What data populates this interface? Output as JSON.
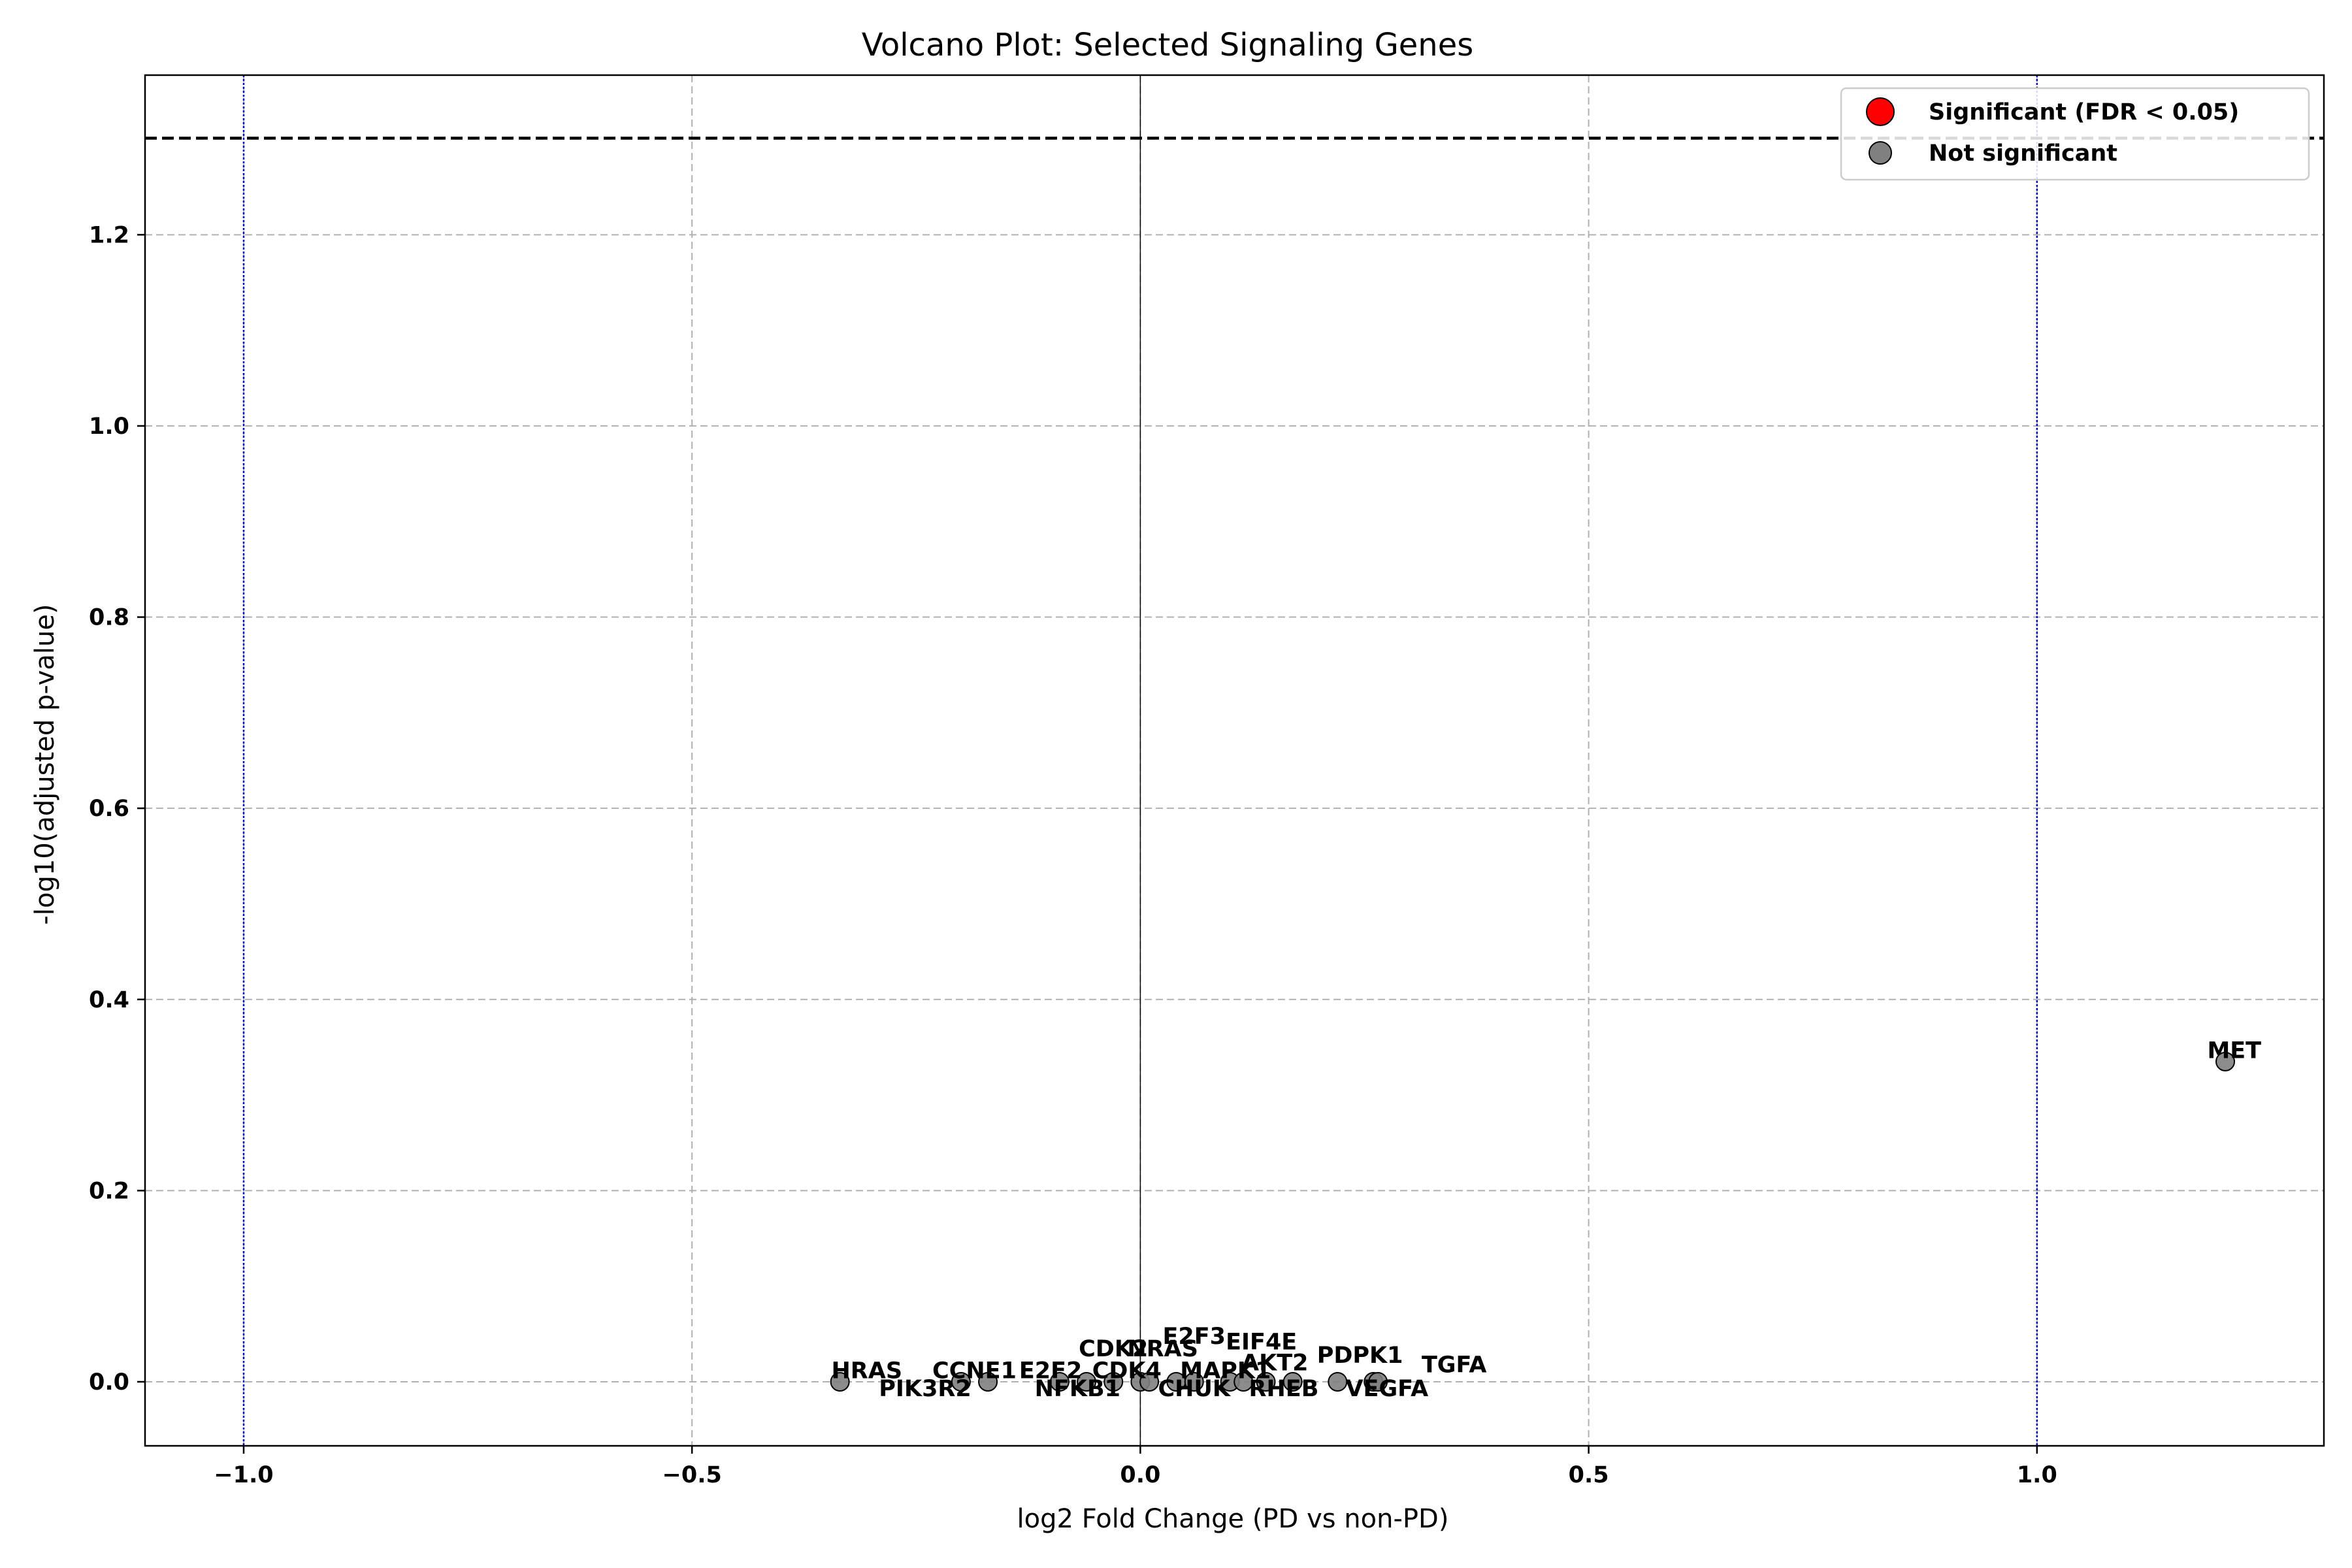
{
  "chart_data": {
    "type": "scatter",
    "title": "Volcano Plot: Selected Signaling Genes",
    "xlabel": "log2 Fold Change (PD vs non-PD)",
    "ylabel": "-log10(adjusted p-value)",
    "xlim": [
      -1.11,
      1.32
    ],
    "ylim": [
      -0.067,
      1.367
    ],
    "xticks": [
      -1.0,
      -0.5,
      0.0,
      0.5,
      1.0
    ],
    "xtick_labels": [
      "−1.0",
      "−0.5",
      "0.0",
      "0.5",
      "1.0"
    ],
    "yticks": [
      0.0,
      0.2,
      0.4,
      0.6,
      0.8,
      1.0,
      1.2
    ],
    "ytick_labels": [
      "0.0",
      "0.2",
      "0.4",
      "0.6",
      "0.8",
      "1.0",
      "1.2"
    ],
    "grid": true,
    "significance_threshold_y": 1.301,
    "fold_change_thresholds_x": [
      -1.0,
      1.0
    ],
    "legend_position": "top-right",
    "legend": [
      {
        "label": "Significant (FDR < 0.05)",
        "color": "#ff0000"
      },
      {
        "label": "Not significant",
        "color": "#808080"
      }
    ],
    "colors": {
      "significant": "#ff0000",
      "not_significant": "#808080",
      "threshold_line": "#000000",
      "fc_line": "#0000cc",
      "grid": "#b0b0b0"
    },
    "series": [
      {
        "name": "Not significant",
        "points": [
          {
            "gene": "HRAS",
            "x": -0.335,
            "y": 0.0
          },
          {
            "gene": "PIK3R2",
            "x": -0.2,
            "y": 0.0
          },
          {
            "gene": "CCNE1",
            "x": -0.17,
            "y": 0.0
          },
          {
            "gene": "E2F2",
            "x": -0.09,
            "y": 0.0
          },
          {
            "gene": "NFKB1",
            "x": -0.06,
            "y": 0.0
          },
          {
            "gene": "CDK2",
            "x": -0.03,
            "y": 0.0
          },
          {
            "gene": "CDK4",
            "x": 0.0,
            "y": 0.0
          },
          {
            "gene": "NRAS",
            "x": 0.01,
            "y": 0.0
          },
          {
            "gene": "CHUK",
            "x": 0.04,
            "y": 0.0
          },
          {
            "gene": "E2F3",
            "x": 0.06,
            "y": 0.0
          },
          {
            "gene": "MAPK1",
            "x": 0.1,
            "y": 0.0
          },
          {
            "gene": "EIF4E",
            "x": 0.115,
            "y": 0.0
          },
          {
            "gene": "RHEB",
            "x": 0.14,
            "y": 0.0
          },
          {
            "gene": "AKT2",
            "x": 0.17,
            "y": 0.0
          },
          {
            "gene": "PDPK1",
            "x": 0.22,
            "y": 0.0
          },
          {
            "gene": "VEGFA",
            "x": 0.26,
            "y": 0.0
          },
          {
            "gene": "TGFA",
            "x": 0.265,
            "y": 0.0
          },
          {
            "gene": "MET",
            "x": 1.21,
            "y": 0.335
          }
        ]
      }
    ],
    "point_labels": [
      {
        "text": "HRAS",
        "x": -0.335,
        "y": 0.0,
        "dx": 0.03,
        "dy": 0.012
      },
      {
        "text": "PIK3R2",
        "x": -0.2,
        "y": 0.0,
        "dx": -0.04,
        "dy": -0.007
      },
      {
        "text": "CCNE1",
        "x": -0.17,
        "y": 0.0,
        "dx": -0.015,
        "dy": 0.012
      },
      {
        "text": "E2F2",
        "x": -0.09,
        "y": 0.0,
        "dx": -0.01,
        "dy": 0.012
      },
      {
        "text": "NFKB1",
        "x": -0.06,
        "y": 0.0,
        "dx": -0.01,
        "dy": -0.007
      },
      {
        "text": "CDK2",
        "x": -0.03,
        "y": 0.0,
        "dx": 0.0,
        "dy": 0.035
      },
      {
        "text": "CDK4",
        "x": 0.0,
        "y": 0.0,
        "dx": -0.015,
        "dy": 0.012
      },
      {
        "text": "NRAS",
        "x": 0.01,
        "y": 0.0,
        "dx": 0.015,
        "dy": 0.035
      },
      {
        "text": "CHUK",
        "x": 0.04,
        "y": 0.0,
        "dx": 0.02,
        "dy": -0.007
      },
      {
        "text": "E2F3",
        "x": 0.06,
        "y": 0.0,
        "dx": 0.0,
        "dy": 0.048
      },
      {
        "text": "MAPK1",
        "x": 0.1,
        "y": 0.0,
        "dx": -0.005,
        "dy": 0.012
      },
      {
        "text": "EIF4E",
        "x": 0.115,
        "y": 0.0,
        "dx": 0.02,
        "dy": 0.042
      },
      {
        "text": "RHEB",
        "x": 0.14,
        "y": 0.0,
        "dx": 0.02,
        "dy": -0.007
      },
      {
        "text": "AKT2",
        "x": 0.17,
        "y": 0.0,
        "dx": -0.02,
        "dy": 0.02
      },
      {
        "text": "PDPK1",
        "x": 0.22,
        "y": 0.0,
        "dx": 0.025,
        "dy": 0.028
      },
      {
        "text": "VEGFA",
        "x": 0.26,
        "y": 0.0,
        "dx": 0.015,
        "dy": -0.007
      },
      {
        "text": "TGFA",
        "x": 0.265,
        "y": 0.0,
        "dx": 0.085,
        "dy": 0.018
      },
      {
        "text": "MET",
        "x": 1.21,
        "y": 0.335,
        "dx": 0.01,
        "dy": 0.012
      }
    ]
  }
}
